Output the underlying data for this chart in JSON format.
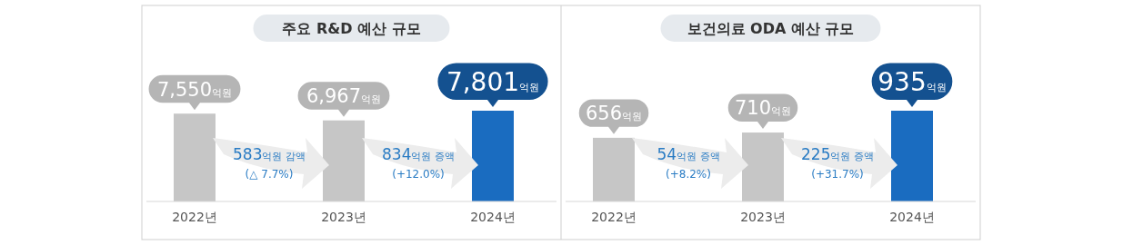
{
  "chart_data": [
    {
      "type": "bar",
      "title": "주요 R&D 예산 규모",
      "categories": [
        "2022년",
        "2023년",
        "2024년"
      ],
      "values": [
        7550,
        6967,
        7801
      ],
      "colors": [
        "#c6c6c6",
        "#c6c6c6",
        "#1a6cc0"
      ],
      "value_labels": [
        "7,550억원",
        "6,967억원",
        "7,801억원"
      ],
      "annotations": [
        "583억원 감액\n(△ 7.7%)",
        "834억원 증액\n(+12.0%)"
      ]
    },
    {
      "type": "bar",
      "title": "보건의료 ODA 예산 규모",
      "categories": [
        "2022년",
        "2023년",
        "2024년"
      ],
      "values": [
        656,
        710,
        935
      ],
      "colors": [
        "#c6c6c6",
        "#c6c6c6",
        "#1a6cc0"
      ],
      "value_labels": [
        "656억원",
        "710억원",
        "935억원"
      ],
      "annotations": [
        "54억원 증액\n(+8.2%)",
        "225억원 증액\n(+31.7%)"
      ]
    }
  ]
}
